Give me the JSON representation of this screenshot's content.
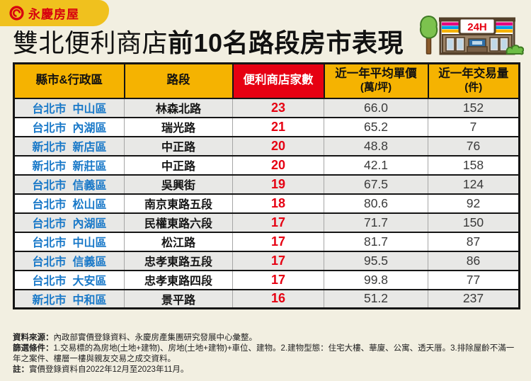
{
  "brand": {
    "name": "永慶房屋"
  },
  "header": {
    "title_regular": "雙北便利商店",
    "title_bold": "前10名路段房市表現",
    "store_sign": "24H"
  },
  "chart_data": {
    "type": "table",
    "title": "雙北便利商店前10名路段房市表現",
    "columns": [
      {
        "label": "縣市&行政區",
        "sub": ""
      },
      {
        "label": "路段",
        "sub": ""
      },
      {
        "label": "便利商店家數",
        "sub": ""
      },
      {
        "label": "近一年平均單價",
        "sub": "(萬/坪)"
      },
      {
        "label": "近一年交易量",
        "sub": "(件)"
      }
    ],
    "rows": [
      {
        "city": "台北市",
        "district": "中山區",
        "road": "林森北路",
        "stores": "23",
        "price": "66.0",
        "volume": "152"
      },
      {
        "city": "台北市",
        "district": "內湖區",
        "road": "瑞光路",
        "stores": "21",
        "price": "65.2",
        "volume": "7"
      },
      {
        "city": "新北市",
        "district": "新店區",
        "road": "中正路",
        "stores": "20",
        "price": "48.8",
        "volume": "76"
      },
      {
        "city": "新北市",
        "district": "新莊區",
        "road": "中正路",
        "stores": "20",
        "price": "42.1",
        "volume": "158"
      },
      {
        "city": "台北市",
        "district": "信義區",
        "road": "吳興街",
        "stores": "19",
        "price": "67.5",
        "volume": "124"
      },
      {
        "city": "台北市",
        "district": "松山區",
        "road": "南京東路五段",
        "stores": "18",
        "price": "80.6",
        "volume": "92"
      },
      {
        "city": "台北市",
        "district": "內湖區",
        "road": "民權東路六段",
        "stores": "17",
        "price": "71.7",
        "volume": "150"
      },
      {
        "city": "台北市",
        "district": "中山區",
        "road": "松江路",
        "stores": "17",
        "price": "81.7",
        "volume": "87"
      },
      {
        "city": "台北市",
        "district": "信義區",
        "road": "忠孝東路五段",
        "stores": "17",
        "price": "95.5",
        "volume": "86"
      },
      {
        "city": "台北市",
        "district": "大安區",
        "road": "忠孝東路四段",
        "stores": "17",
        "price": "99.8",
        "volume": "77"
      },
      {
        "city": "新北市",
        "district": "中和區",
        "road": "景平路",
        "stores": "16",
        "price": "51.2",
        "volume": "237"
      }
    ]
  },
  "footnotes": [
    {
      "label": "資料來源：",
      "text": "內政部實價登錄資料、永慶房產集團研究發展中心彙整。"
    },
    {
      "label": "篩選條件：",
      "text": "1.交易標的為房地(土地+建物)、房地(土地+建物)+車位、建物。2.建物型態：住宅大樓、華廈、公寓、透天厝。3.排除屋齡不滿一年之案件、樓層一樓與親友交易之成交資料。"
    },
    {
      "label": "註：",
      "text": "實價登錄資料自2022年12月至2023年11月。"
    }
  ],
  "colors": {
    "background": "#F2EFE1",
    "accent_yellow": "#F5B301",
    "accent_red": "#E60012",
    "brand_red": "#D7000F",
    "city_blue": "#1878C8",
    "row_alt": "#E8E8E6"
  }
}
